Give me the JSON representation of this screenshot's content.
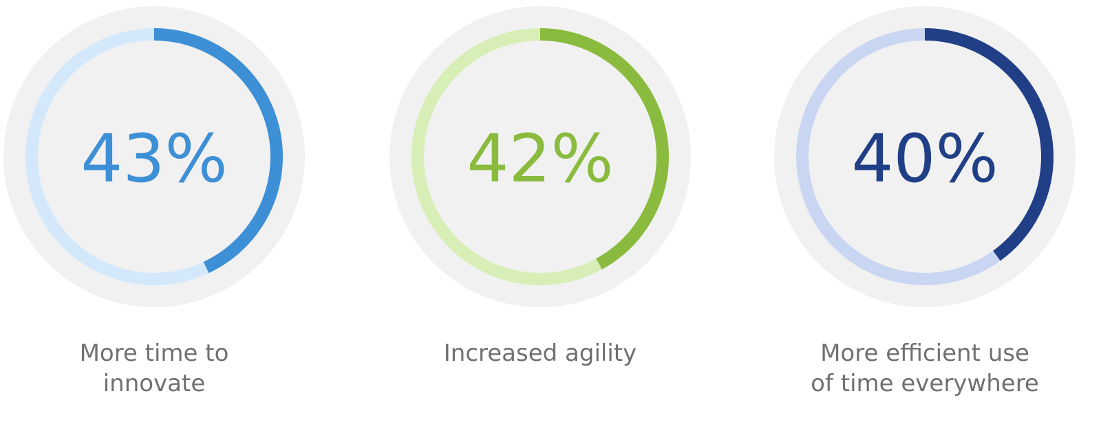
{
  "chart_data": {
    "type": "donut",
    "items": [
      {
        "value": 43,
        "label_text": "43%",
        "caption_lines": [
          "More time to",
          "innovate"
        ],
        "color": "#3D8FD6",
        "track_color": "#D3E9FB"
      },
      {
        "value": 42,
        "label_text": "42%",
        "caption_lines": [
          "Increased agility"
        ],
        "color": "#8ABB3F",
        "track_color": "#D7EEB6"
      },
      {
        "value": 40,
        "label_text": "40%",
        "caption_lines": [
          "More efficient use",
          "of time everywhere"
        ],
        "color": "#203F86",
        "track_color": "#C9D6F2"
      }
    ],
    "background_disc_color": "#F1F1F1"
  }
}
